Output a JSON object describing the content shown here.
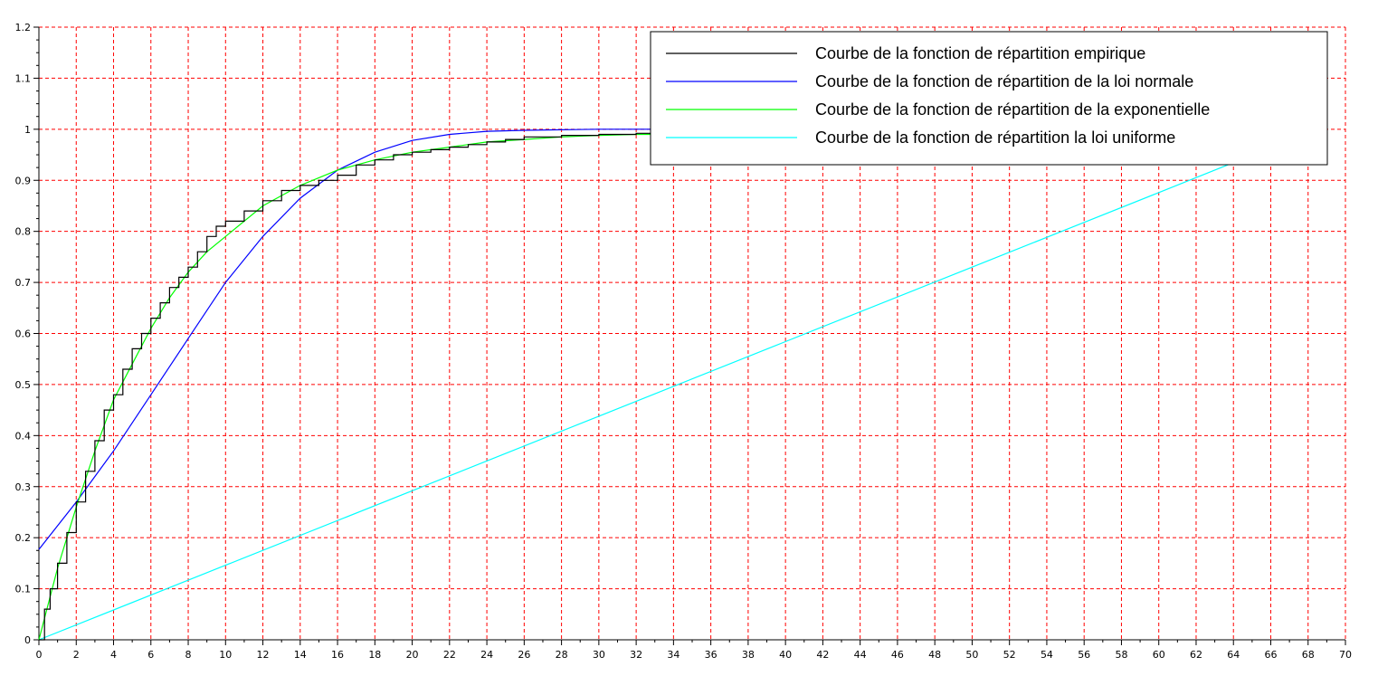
{
  "chart_data": {
    "type": "line",
    "title": "",
    "xlabel": "",
    "ylabel": "",
    "xlim": [
      0,
      70
    ],
    "ylim": [
      0,
      1.2
    ],
    "xticks": [
      0,
      2,
      4,
      6,
      8,
      10,
      12,
      14,
      16,
      18,
      20,
      22,
      24,
      26,
      28,
      30,
      32,
      34,
      36,
      38,
      40,
      42,
      44,
      46,
      48,
      50,
      52,
      54,
      56,
      58,
      60,
      62,
      64,
      66,
      68,
      70
    ],
    "yticks": [
      0,
      0.1,
      0.2,
      0.3,
      0.4,
      0.5,
      0.6,
      0.7,
      0.8,
      0.9,
      1,
      1.1,
      1.2
    ],
    "xtick_labels": [
      "0",
      "2",
      "4",
      "6",
      "8",
      "10",
      "12",
      "14",
      "16",
      "18",
      "20",
      "22",
      "24",
      "26",
      "28",
      "30",
      "32",
      "34",
      "36",
      "38",
      "40",
      "42",
      "44",
      "46",
      "48",
      "50",
      "52",
      "54",
      "56",
      "58",
      "60",
      "62",
      "64",
      "66",
      "68",
      "70"
    ],
    "ytick_labels": [
      "0",
      "0.1",
      "0.2",
      "0.3",
      "0.4",
      "0.5",
      "0.6",
      "0.7",
      "0.8",
      "0.9",
      "1",
      "1.1",
      "1.2"
    ],
    "grid": true,
    "grid_color": "#ff0000",
    "grid_style": "dashed",
    "legend_position": "top-right",
    "series": [
      {
        "name": "Courbe de la fonction de répartition empirique",
        "color": "#000000",
        "step": true,
        "x": [
          0,
          0.3,
          0.6,
          1,
          1.5,
          2,
          2.5,
          3,
          3.5,
          4,
          4.5,
          5,
          5.5,
          6,
          6.5,
          7,
          7.5,
          8,
          8.5,
          9,
          9.5,
          10,
          11,
          12,
          13,
          14,
          15,
          16,
          17,
          18,
          19,
          20,
          21,
          22,
          23,
          24,
          25,
          26,
          28,
          30,
          32,
          33
        ],
        "y": [
          0,
          0.06,
          0.1,
          0.15,
          0.21,
          0.27,
          0.33,
          0.39,
          0.45,
          0.48,
          0.53,
          0.57,
          0.6,
          0.63,
          0.66,
          0.69,
          0.71,
          0.73,
          0.76,
          0.79,
          0.81,
          0.82,
          0.84,
          0.86,
          0.88,
          0.89,
          0.9,
          0.91,
          0.93,
          0.94,
          0.95,
          0.955,
          0.96,
          0.965,
          0.97,
          0.975,
          0.98,
          0.985,
          0.988,
          0.99,
          0.992,
          0.992
        ]
      },
      {
        "name": "Courbe de la fonction de répartition de la loi normale",
        "color": "#0000ff",
        "step": false,
        "x": [
          0,
          2,
          4,
          6,
          8,
          10,
          12,
          14,
          16,
          18,
          20,
          22,
          24,
          26,
          28,
          30,
          32,
          33
        ],
        "y": [
          0.177,
          0.27,
          0.37,
          0.48,
          0.59,
          0.7,
          0.79,
          0.865,
          0.92,
          0.955,
          0.978,
          0.99,
          0.996,
          0.998,
          0.999,
          1.0,
          1.0,
          1.0
        ]
      },
      {
        "name": "Courbe de la fonction de répartition de la exponentielle",
        "color": "#00ff00",
        "step": false,
        "x": [
          0,
          1,
          2,
          3,
          4,
          5,
          6,
          7,
          8,
          9,
          10,
          12,
          14,
          16,
          18,
          20,
          22,
          24,
          26,
          28,
          30,
          32,
          33
        ],
        "y": [
          0,
          0.14,
          0.26,
          0.37,
          0.47,
          0.54,
          0.61,
          0.67,
          0.72,
          0.76,
          0.79,
          0.85,
          0.89,
          0.92,
          0.94,
          0.955,
          0.965,
          0.975,
          0.98,
          0.985,
          0.988,
          0.99,
          0.99
        ]
      },
      {
        "name": "Courbe de la fonction de répartition la loi uniforme",
        "color": "#00ffff",
        "step": false,
        "x": [
          0,
          10,
          20,
          30,
          40,
          50,
          60,
          64.5
        ],
        "y": [
          0,
          0.146,
          0.292,
          0.438,
          0.584,
          0.73,
          0.876,
          0.942
        ]
      }
    ]
  }
}
